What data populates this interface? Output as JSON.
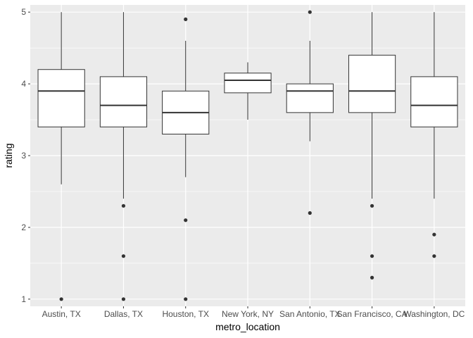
{
  "chart_data": {
    "type": "boxplot",
    "title": "",
    "xlabel": "metro_location",
    "ylabel": "rating",
    "ylim": [
      0.9,
      5.1
    ],
    "yticks": [
      1,
      2,
      3,
      4,
      5
    ],
    "grid": true,
    "legend": "none",
    "colors": {
      "panel_background": "#ebebeb",
      "grid_major": "#ffffff",
      "box_fill": "#ffffff",
      "box_line": "#333333",
      "outlier": "#333333",
      "tick_label": "#4d4d4d"
    },
    "categories": [
      "Austin, TX",
      "Dallas, TX",
      "Houston, TX",
      "New York, NY",
      "San Antonio, TX",
      "San Francisco, CA",
      "Washington, DC"
    ],
    "boxes": [
      {
        "category": "Austin, TX",
        "whisker_low": 2.6,
        "q1": 3.4,
        "median": 3.9,
        "q3": 4.2,
        "whisker_high": 5.0,
        "outliers": [
          1.0
        ]
      },
      {
        "category": "Dallas, TX",
        "whisker_low": 2.4,
        "q1": 3.4,
        "median": 3.7,
        "q3": 4.1,
        "whisker_high": 5.0,
        "outliers": [
          2.3,
          1.6,
          1.0
        ]
      },
      {
        "category": "Houston, TX",
        "whisker_low": 2.7,
        "q1": 3.3,
        "median": 3.6,
        "q3": 3.9,
        "whisker_high": 4.6,
        "outliers": [
          4.9,
          2.1,
          1.0
        ]
      },
      {
        "category": "New York, NY",
        "whisker_low": 3.5,
        "q1": 3.875,
        "median": 4.05,
        "q3": 4.15,
        "whisker_high": 4.3,
        "outliers": []
      },
      {
        "category": "San Antonio, TX",
        "whisker_low": 3.2,
        "q1": 3.6,
        "median": 3.9,
        "q3": 4.0,
        "whisker_high": 4.6,
        "outliers": [
          5.0,
          2.2
        ]
      },
      {
        "category": "San Francisco, CA",
        "whisker_low": 2.4,
        "q1": 3.6,
        "median": 3.9,
        "q3": 4.4,
        "whisker_high": 5.0,
        "outliers": [
          2.3,
          1.6,
          1.3
        ]
      },
      {
        "category": "Washington, DC",
        "whisker_low": 2.4,
        "q1": 3.4,
        "median": 3.7,
        "q3": 4.1,
        "whisker_high": 5.0,
        "outliers": [
          1.9,
          1.6
        ]
      }
    ]
  }
}
